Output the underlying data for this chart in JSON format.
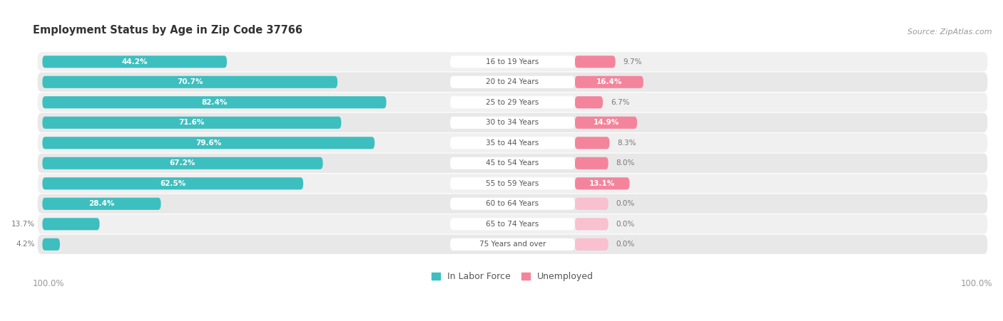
{
  "title": "Employment Status by Age in Zip Code 37766",
  "source": "Source: ZipAtlas.com",
  "categories": [
    "16 to 19 Years",
    "20 to 24 Years",
    "25 to 29 Years",
    "30 to 34 Years",
    "35 to 44 Years",
    "45 to 54 Years",
    "55 to 59 Years",
    "60 to 64 Years",
    "65 to 74 Years",
    "75 Years and over"
  ],
  "labor_force": [
    44.2,
    70.7,
    82.4,
    71.6,
    79.6,
    67.2,
    62.5,
    28.4,
    13.7,
    4.2
  ],
  "unemployed": [
    9.7,
    16.4,
    6.7,
    14.9,
    8.3,
    8.0,
    13.1,
    0.0,
    0.0,
    0.0
  ],
  "labor_force_color": "#3DBFBF",
  "unemployed_color": "#F4849C",
  "unemployed_zero_color": "#F9C0CF",
  "row_bg_odd": "#F0F0F0",
  "row_bg_even": "#E8E8E8",
  "label_text_color": "#555555",
  "outside_label_color": "#777777",
  "axis_label_color": "#999999",
  "title_color": "#333333",
  "source_color": "#999999",
  "legend_labor_label": "In Labor Force",
  "legend_unemployed_label": "Unemployed",
  "x_axis_left": "100.0%",
  "x_axis_right": "100.0%"
}
